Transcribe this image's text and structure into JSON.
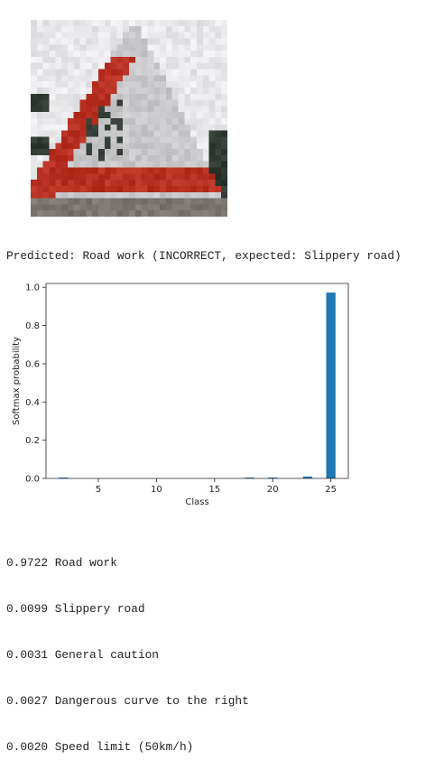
{
  "input_image": {
    "grid": 32,
    "palette": {
      "sky": "#e8e8ea",
      "sign": "#c8c8cb",
      "red": "#b83022",
      "dark": "#303832",
      "ground": "#7a7570"
    }
  },
  "prediction": {
    "text": "Predicted: Road work (INCORRECT, expected: Slippery road)"
  },
  "chart_data": {
    "type": "bar",
    "x": [
      1,
      2,
      3,
      4,
      5,
      6,
      7,
      8,
      9,
      10,
      11,
      12,
      13,
      14,
      15,
      16,
      17,
      18,
      19,
      20,
      21,
      22,
      23,
      24,
      25
    ],
    "values": [
      0,
      0.0031,
      0,
      0,
      0,
      0,
      0,
      0,
      0,
      0,
      0,
      0,
      0,
      0,
      0,
      0,
      0,
      0.0027,
      0,
      0.002,
      0,
      0,
      0.0099,
      0,
      0.9722
    ],
    "xlabel": "Class",
    "ylabel": "Softmax probability",
    "xlim": [
      0.5,
      26.5
    ],
    "ylim": [
      0,
      1.02
    ],
    "xticks": [
      5,
      10,
      15,
      20,
      25
    ],
    "yticks": [
      0.0,
      0.2,
      0.4,
      0.6,
      0.8,
      1.0
    ],
    "ytick_labels": [
      "0.0",
      "0.2",
      "0.4",
      "0.6",
      "0.8",
      "1.0"
    ],
    "bar_color": "#1f77b4",
    "grid": false,
    "legend": false
  },
  "top5": [
    {
      "text": "0.9722 Road work"
    },
    {
      "text": "0.0099 Slippery road"
    },
    {
      "text": "0.0031 General caution"
    },
    {
      "text": "0.0027 Dangerous curve to the right"
    },
    {
      "text": "0.0020 Speed limit (50km/h)"
    }
  ]
}
